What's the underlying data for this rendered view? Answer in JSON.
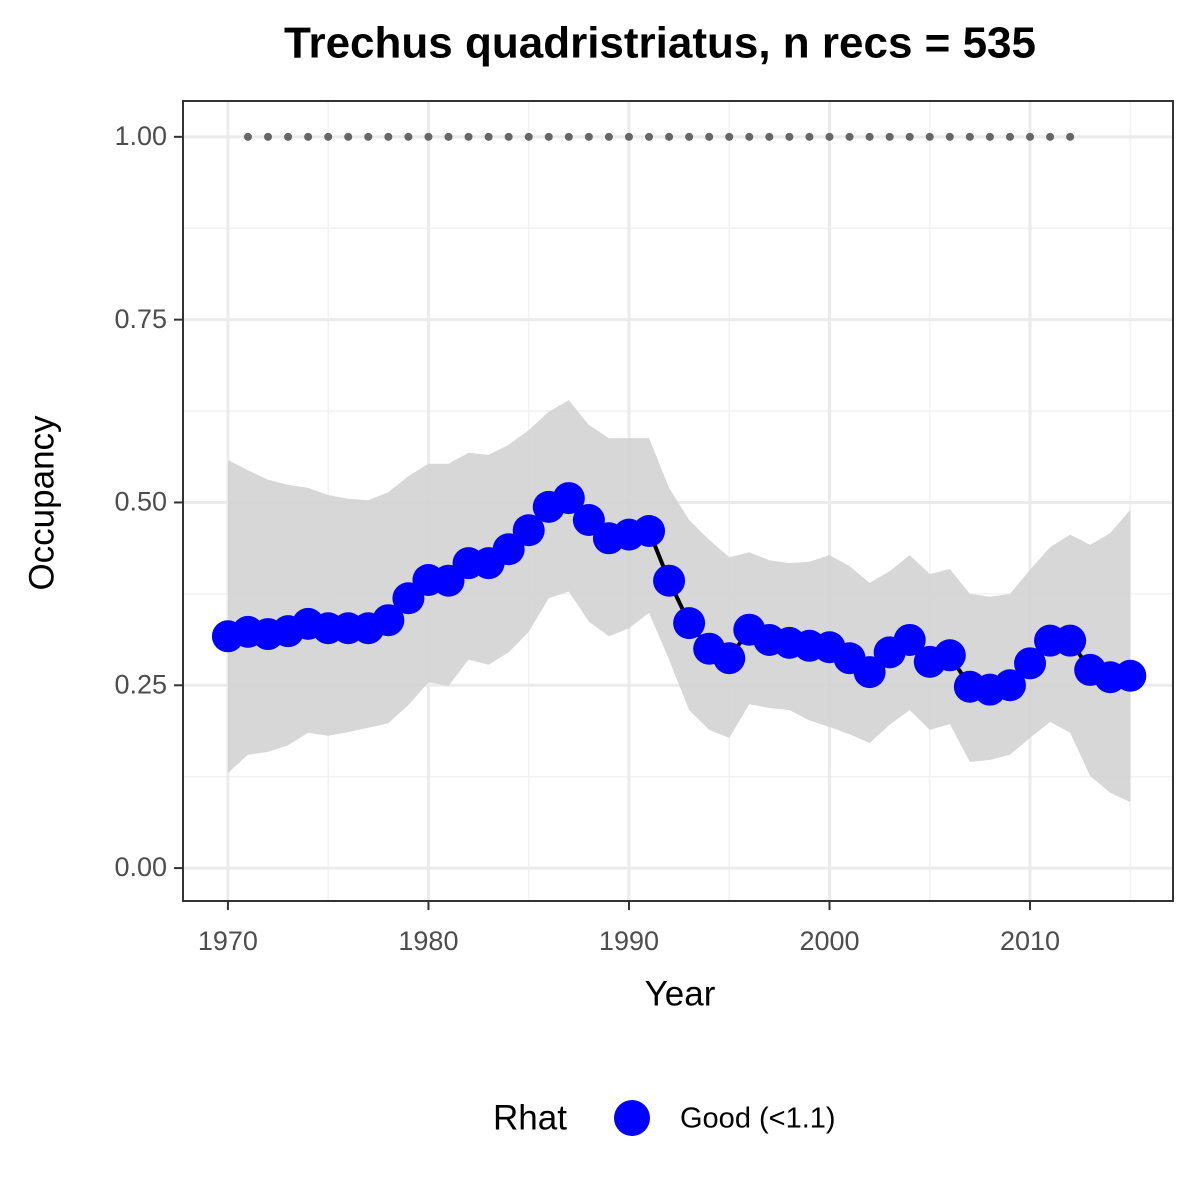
{
  "chart_data": {
    "type": "line",
    "title": "Trechus quadristriatus, n recs = 535",
    "x_label": "Year",
    "y_label": "Occupancy",
    "legend_title": "Rhat",
    "xlim": [
      1967.76,
      2017.13
    ],
    "ylim": [
      -0.045,
      1.049
    ],
    "xticks": [
      1970,
      1980,
      1990,
      2000,
      2010
    ],
    "yticks": [
      {
        "value": 0,
        "label": "0.00"
      },
      {
        "value": 0.25,
        "label": "0.25"
      },
      {
        "value": 0.5,
        "label": "0.50"
      },
      {
        "value": 0.75,
        "label": "0.75"
      },
      {
        "value": 1,
        "label": "1.00"
      }
    ],
    "x_minor_grid": [
      1975,
      1985,
      1995,
      2005,
      2015
    ],
    "y_minor_grid": [
      0.125,
      0.375,
      0.625,
      0.875
    ],
    "grid": true,
    "x": [
      1970,
      1971,
      1972,
      1973,
      1974,
      1975,
      1976,
      1977,
      1978,
      1979,
      1980,
      1981,
      1982,
      1983,
      1984,
      1985,
      1986,
      1987,
      1988,
      1989,
      1990,
      1991,
      1992,
      1993,
      1994,
      1995,
      1996,
      1997,
      1998,
      1999,
      2000,
      2001,
      2002,
      2003,
      2004,
      2005,
      2006,
      2007,
      2008,
      2009,
      2010,
      2011,
      2012,
      2013,
      2014,
      2015
    ],
    "band": {
      "color": "#d3d3d3",
      "upper": [
        0.558,
        0.544,
        0.531,
        0.524,
        0.52,
        0.51,
        0.505,
        0.503,
        0.514,
        0.536,
        0.553,
        0.553,
        0.568,
        0.565,
        0.579,
        0.599,
        0.624,
        0.64,
        0.606,
        0.588,
        0.588,
        0.588,
        0.52,
        0.476,
        0.449,
        0.425,
        0.432,
        0.421,
        0.417,
        0.419,
        0.428,
        0.413,
        0.39,
        0.406,
        0.428,
        0.402,
        0.409,
        0.375,
        0.371,
        0.375,
        0.408,
        0.439,
        0.456,
        0.442,
        0.458,
        0.49
      ],
      "lower": [
        0.13,
        0.155,
        0.159,
        0.168,
        0.185,
        0.181,
        0.186,
        0.192,
        0.198,
        0.223,
        0.254,
        0.249,
        0.285,
        0.278,
        0.295,
        0.323,
        0.369,
        0.378,
        0.337,
        0.317,
        0.328,
        0.349,
        0.285,
        0.216,
        0.189,
        0.178,
        0.224,
        0.219,
        0.216,
        0.202,
        0.193,
        0.183,
        0.171,
        0.196,
        0.216,
        0.189,
        0.197,
        0.145,
        0.148,
        0.155,
        0.178,
        0.2,
        0.185,
        0.126,
        0.103,
        0.09
      ]
    },
    "series": [
      {
        "name": "Good (<1.1)",
        "color": "#0000ff",
        "line_color": "#000000",
        "values": [
          0.317,
          0.323,
          0.32,
          0.324,
          0.334,
          0.328,
          0.328,
          0.328,
          0.339,
          0.369,
          0.394,
          0.393,
          0.417,
          0.417,
          0.436,
          0.462,
          0.494,
          0.506,
          0.476,
          0.451,
          0.456,
          0.461,
          0.393,
          0.335,
          0.3,
          0.287,
          0.326,
          0.312,
          0.308,
          0.304,
          0.302,
          0.287,
          0.268,
          0.295,
          0.312,
          0.282,
          0.291,
          0.248,
          0.244,
          0.25,
          0.28,
          0.311,
          0.311,
          0.271,
          0.261,
          0.263
        ]
      }
    ],
    "records": {
      "color": "#666666",
      "x": [
        1971,
        1972,
        1973,
        1974,
        1975,
        1976,
        1977,
        1978,
        1979,
        1980,
        1981,
        1982,
        1983,
        1984,
        1985,
        1986,
        1987,
        1988,
        1989,
        1990,
        1991,
        1992,
        1993,
        1994,
        1995,
        1996,
        1997,
        1998,
        1999,
        2000,
        2001,
        2002,
        2003,
        2004,
        2005,
        2006,
        2007,
        2008,
        2009,
        2010,
        2011,
        2012
      ],
      "values": [
        1,
        1,
        1,
        1,
        1,
        1,
        1,
        1,
        1,
        1,
        1,
        1,
        1,
        1,
        1,
        1,
        1,
        1,
        1,
        1,
        1,
        1,
        1,
        1,
        1,
        1,
        1,
        1,
        1,
        1,
        1,
        1,
        1,
        1,
        1,
        1,
        1,
        1,
        1,
        1,
        1,
        1
      ]
    }
  }
}
